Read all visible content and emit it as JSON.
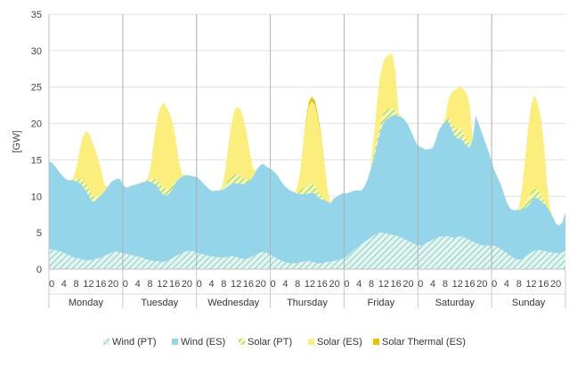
{
  "chart_data": {
    "type": "area",
    "stacked": true,
    "ylabel": "[GW]",
    "ylim": [
      0,
      35
    ],
    "yticks": [
      0,
      5,
      10,
      15,
      20,
      25,
      30,
      35
    ],
    "days": [
      "Monday",
      "Tuesday",
      "Wednesday",
      "Thursday",
      "Friday",
      "Saturday",
      "Sunday"
    ],
    "hour_ticks": [
      "0",
      "4",
      "8",
      "12",
      "16",
      "20"
    ],
    "hour_tick_values": [
      0,
      4,
      8,
      12,
      16,
      20
    ],
    "hours_per_day": 24,
    "grid": true,
    "legend_position": "bottom",
    "series": [
      {
        "name": "Wind (PT)",
        "color": "#9ed9cf",
        "pattern": "hatched",
        "values": [
          2.8,
          2.7,
          2.6,
          2.5,
          2.4,
          2.2,
          2.0,
          1.8,
          1.6,
          1.5,
          1.4,
          1.3,
          1.2,
          1.2,
          1.3,
          1.4,
          1.5,
          1.6,
          1.8,
          2.0,
          2.2,
          2.4,
          2.4,
          2.3,
          2.2,
          2.1,
          2.0,
          1.9,
          1.8,
          1.7,
          1.6,
          1.4,
          1.3,
          1.2,
          1.1,
          1.1,
          1.0,
          1.0,
          1.1,
          1.3,
          1.5,
          1.8,
          2.0,
          2.2,
          2.4,
          2.5,
          2.5,
          2.4,
          2.2,
          2.1,
          2.0,
          1.9,
          1.8,
          1.7,
          1.7,
          1.6,
          1.6,
          1.6,
          1.7,
          1.8,
          1.7,
          1.6,
          1.5,
          1.4,
          1.4,
          1.6,
          1.8,
          2.0,
          2.2,
          2.4,
          2.3,
          2.1,
          1.9,
          1.6,
          1.4,
          1.2,
          1.0,
          0.9,
          0.8,
          0.8,
          0.8,
          0.9,
          1.0,
          1.1,
          1.1,
          1.0,
          0.9,
          0.8,
          0.8,
          0.9,
          1.0,
          1.0,
          1.1,
          1.2,
          1.3,
          1.4,
          1.6,
          2.0,
          2.4,
          2.8,
          3.1,
          3.4,
          3.7,
          4.0,
          4.3,
          4.6,
          4.8,
          5.0,
          5.0,
          4.9,
          4.8,
          4.7,
          4.6,
          4.5,
          4.3,
          4.1,
          3.9,
          3.7,
          3.5,
          3.3,
          3.2,
          3.4,
          3.6,
          3.8,
          4.0,
          4.2,
          4.4,
          4.5,
          4.5,
          4.5,
          4.4,
          4.3,
          4.4,
          4.5,
          4.4,
          4.2,
          4.0,
          3.8,
          3.6,
          3.4,
          3.3,
          3.2,
          3.2,
          3.2,
          3.2,
          3.0,
          2.8,
          2.5,
          2.2,
          1.9,
          1.6,
          1.4,
          1.3,
          1.4,
          1.7,
          2.0,
          2.3,
          2.5,
          2.6,
          2.6,
          2.5,
          2.4,
          2.3,
          2.3,
          2.2,
          2.2,
          2.3,
          2.5
        ]
      },
      {
        "name": "Wind (ES)",
        "color": "#95d5e9",
        "pattern": "solid",
        "values": [
          12.0,
          11.9,
          11.5,
          11.0,
          10.6,
          10.3,
          10.2,
          10.4,
          10.6,
          10.5,
          10.4,
          10.0,
          9.5,
          8.8,
          8.0,
          7.9,
          8.2,
          8.6,
          8.9,
          9.3,
          9.7,
          9.8,
          10.0,
          10.1,
          9.3,
          9.1,
          9.3,
          9.6,
          9.8,
          10.0,
          10.3,
          10.6,
          10.8,
          10.8,
          10.6,
          10.3,
          9.7,
          9.2,
          9.0,
          9.1,
          9.6,
          10.1,
          10.4,
          10.5,
          10.5,
          10.4,
          10.3,
          10.3,
          10.4,
          10.1,
          9.7,
          9.4,
          9.1,
          9.0,
          9.1,
          9.2,
          9.3,
          9.5,
          9.7,
          9.9,
          10.1,
          10.2,
          10.2,
          10.3,
          10.4,
          10.6,
          10.9,
          11.5,
          11.9,
          12.1,
          11.9,
          11.8,
          11.8,
          11.7,
          11.4,
          10.9,
          10.5,
          10.2,
          10.0,
          9.8,
          9.6,
          9.4,
          9.3,
          9.2,
          9.3,
          9.5,
          9.5,
          9.1,
          8.8,
          8.6,
          8.3,
          8.0,
          8.6,
          8.7,
          8.9,
          9.0,
          8.8,
          8.5,
          8.3,
          8.0,
          7.7,
          7.4,
          7.6,
          8.3,
          9.3,
          10.6,
          12.1,
          13.6,
          15.0,
          15.6,
          16.0,
          16.4,
          16.6,
          16.5,
          16.6,
          16.4,
          16.0,
          15.3,
          14.5,
          13.8,
          13.6,
          13.2,
          12.8,
          12.7,
          12.6,
          13.4,
          14.6,
          15.2,
          15.7,
          15.9,
          15.0,
          14.2,
          13.5,
          13.6,
          13.1,
          12.8,
          12.7,
          14.0,
          17.5,
          16.5,
          15.4,
          14.3,
          13.1,
          11.8,
          10.4,
          9.7,
          8.9,
          8.0,
          7.0,
          6.5,
          6.5,
          6.7,
          6.8,
          6.8,
          6.7,
          6.7,
          7.0,
          7.4,
          7.1,
          6.8,
          6.5,
          6.2,
          5.6,
          4.8,
          4.0,
          3.8,
          4.1,
          5.3
        ]
      },
      {
        "name": "Solar (PT)",
        "color": "#b5dc3c",
        "pattern": "hatched",
        "values": [
          0,
          0,
          0,
          0,
          0,
          0,
          0,
          0,
          0.1,
          0.4,
          0.7,
          0.9,
          1.0,
          1.0,
          0.9,
          0.7,
          0.4,
          0.1,
          0,
          0,
          0,
          0,
          0,
          0,
          0,
          0,
          0,
          0,
          0,
          0,
          0,
          0,
          0.1,
          0.4,
          0.7,
          0.9,
          1.0,
          1.0,
          0.9,
          0.7,
          0.4,
          0.1,
          0,
          0,
          0,
          0,
          0,
          0,
          0,
          0,
          0,
          0,
          0,
          0,
          0,
          0,
          0.1,
          0.4,
          0.7,
          1.0,
          1.2,
          1.2,
          1.1,
          0.8,
          0.5,
          0.1,
          0,
          0,
          0,
          0,
          0,
          0,
          0,
          0,
          0,
          0,
          0,
          0,
          0,
          0,
          0.1,
          0.4,
          0.7,
          1.0,
          1.2,
          1.2,
          1.1,
          0.8,
          0.5,
          0.1,
          0,
          0,
          0,
          0,
          0,
          0,
          0,
          0,
          0,
          0,
          0,
          0,
          0,
          0,
          0.1,
          0.5,
          0.8,
          1.1,
          1.3,
          1.3,
          1.2,
          0.9,
          0.6,
          0.1,
          0,
          0,
          0,
          0,
          0,
          0,
          0,
          0,
          0,
          0,
          0,
          0,
          0,
          0,
          0.1,
          0.5,
          0.8,
          1.1,
          1.3,
          1.3,
          1.2,
          0.9,
          0.6,
          0.1,
          0,
          0,
          0,
          0,
          0,
          0,
          0,
          0,
          0,
          0,
          0,
          0,
          0,
          0,
          0.1,
          0.4,
          0.7,
          1.0,
          1.2,
          1.2,
          1.1,
          0.8,
          0.5,
          0.1,
          0,
          0,
          0,
          0,
          0,
          0
        ]
      },
      {
        "name": "Solar (ES)",
        "color": "#fcee7c",
        "pattern": "solid",
        "values": [
          0,
          0,
          0,
          0,
          0,
          0,
          0,
          0,
          0.3,
          1.8,
          4.0,
          6.0,
          7.3,
          7.6,
          7.2,
          6.3,
          5.0,
          3.1,
          0.8,
          0,
          0,
          0,
          0,
          0,
          0,
          0,
          0,
          0,
          0,
          0,
          0,
          0,
          0.3,
          2.0,
          5.5,
          8.5,
          10.5,
          11.7,
          11.3,
          10.3,
          8.6,
          5.9,
          2.5,
          0.3,
          0,
          0,
          0,
          0,
          0,
          0,
          0,
          0,
          0,
          0,
          0,
          0,
          0.3,
          2.0,
          4.8,
          7.2,
          8.9,
          9.3,
          9.1,
          8.0,
          6.3,
          3.7,
          1.0,
          0,
          0,
          0,
          0,
          0,
          0,
          0,
          0,
          0,
          0,
          0,
          0,
          0,
          0.3,
          2.0,
          5.3,
          8.7,
          10.8,
          11.4,
          11.0,
          9.9,
          8.3,
          5.2,
          1.9,
          0.2,
          0,
          0,
          0,
          0,
          0,
          0,
          0,
          0,
          0,
          0,
          0,
          0,
          0.3,
          2.2,
          4.8,
          6.6,
          7.0,
          7.3,
          7.5,
          7.6,
          5.3,
          0.4,
          0,
          0,
          0,
          0,
          0,
          0,
          0,
          0,
          0,
          0,
          0,
          0,
          0,
          0,
          0.3,
          2.1,
          3.9,
          5.0,
          5.5,
          5.8,
          6.0,
          6.3,
          5.4,
          0.2,
          0,
          0,
          0,
          0,
          0,
          0,
          0,
          0,
          0,
          0,
          0,
          0,
          0,
          0,
          0.3,
          2.6,
          6.2,
          9.9,
          12.2,
          12.8,
          12.1,
          10.8,
          7.8,
          3.2,
          0.5,
          0,
          0,
          0,
          0,
          0
        ]
      },
      {
        "name": "Solar Thermal (ES)",
        "color": "#e8c300",
        "pattern": "solid",
        "values": [
          0,
          0,
          0,
          0,
          0,
          0,
          0,
          0,
          0,
          0,
          0,
          0,
          0,
          0,
          0,
          0,
          0,
          0,
          0,
          0,
          0,
          0,
          0,
          0,
          0,
          0,
          0,
          0,
          0,
          0,
          0,
          0,
          0,
          0,
          0,
          0,
          0,
          0,
          0,
          0,
          0,
          0,
          0,
          0,
          0,
          0,
          0,
          0,
          0,
          0,
          0,
          0,
          0,
          0,
          0,
          0,
          0,
          0,
          0,
          0,
          0,
          0,
          0,
          0,
          0,
          0,
          0,
          0,
          0,
          0,
          0,
          0,
          0,
          0,
          0,
          0,
          0,
          0,
          0,
          0,
          0,
          0,
          0.1,
          0.3,
          0.5,
          0.6,
          0.6,
          0.5,
          0.3,
          0.1,
          0,
          0,
          0,
          0,
          0,
          0,
          0,
          0,
          0,
          0,
          0,
          0,
          0,
          0,
          0,
          0,
          0,
          0,
          0,
          0,
          0,
          0,
          0,
          0,
          0,
          0,
          0,
          0,
          0,
          0,
          0,
          0,
          0,
          0,
          0,
          0,
          0,
          0,
          0,
          0,
          0,
          0,
          0,
          0,
          0,
          0,
          0,
          0,
          0,
          0,
          0,
          0,
          0,
          0,
          0,
          0,
          0,
          0,
          0,
          0,
          0,
          0,
          0,
          0,
          0,
          0,
          0,
          0,
          0,
          0,
          0,
          0,
          0,
          0,
          0,
          0,
          0,
          0
        ]
      }
    ]
  }
}
